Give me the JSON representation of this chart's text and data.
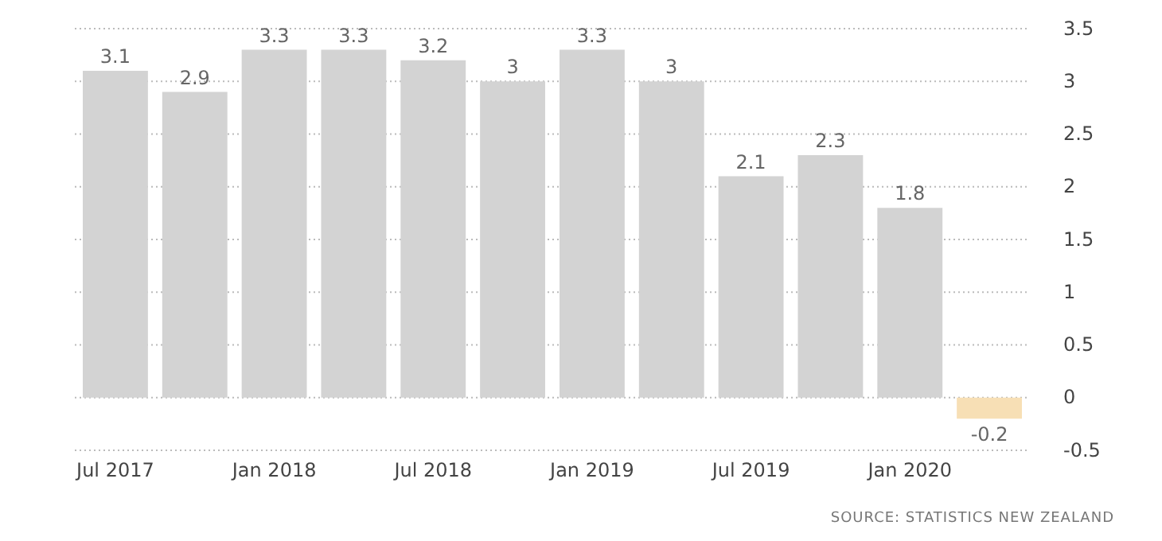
{
  "chart_data": {
    "type": "bar",
    "categories": [
      "Jul 2017",
      null,
      "Jan 2018",
      null,
      "Jul 2018",
      null,
      "Jan 2019",
      null,
      "Jul 2019",
      null,
      "Jan 2020",
      null
    ],
    "values": [
      3.1,
      2.9,
      3.3,
      3.3,
      3.2,
      3,
      3.3,
      3,
      2.1,
      2.3,
      1.8,
      -0.2
    ],
    "colors": [
      "#d3d3d3",
      "#d3d3d3",
      "#d3d3d3",
      "#d3d3d3",
      "#d3d3d3",
      "#d3d3d3",
      "#d3d3d3",
      "#d3d3d3",
      "#d3d3d3",
      "#d3d3d3",
      "#d3d3d3",
      "#f7dfb5"
    ],
    "ylim": [
      -0.5,
      3.5
    ],
    "yticks": [
      -0.5,
      0,
      0.5,
      1,
      1.5,
      2,
      2.5,
      3,
      3.5
    ],
    "grid": "y",
    "data_labels": true,
    "annotations": [
      "SOURCE: STATISTICS NEW ZEALAND"
    ]
  }
}
